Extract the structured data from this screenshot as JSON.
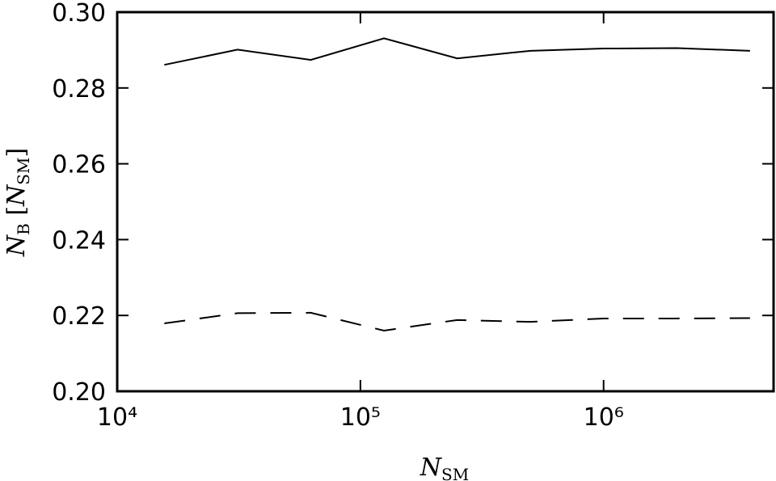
{
  "chart_data": {
    "type": "line",
    "xlabel": [
      "N",
      "SM"
    ],
    "ylabel": [
      "N",
      "B",
      " [",
      "N",
      "SM",
      "]"
    ],
    "x": [
      15625,
      31250,
      62500,
      125000,
      250000,
      500000,
      1000000,
      2000000,
      4000000
    ],
    "series": [
      {
        "color": "#000000",
        "linestyle": "solid",
        "values": [
          0.2861,
          0.2901,
          0.2874,
          0.2931,
          0.2878,
          0.2898,
          0.2904,
          0.2905,
          0.2898
        ]
      },
      {
        "color": "#000000",
        "linestyle": "dashed",
        "values": [
          0.2179,
          0.2206,
          0.2207,
          0.216,
          0.2188,
          0.2183,
          0.2192,
          0.2192,
          0.2193
        ]
      }
    ],
    "xscale": "log",
    "xlim": [
      10000,
      5000000
    ],
    "xticks": [
      {
        "value": 10000,
        "label": "10⁴"
      },
      {
        "value": 100000,
        "label": "10⁵"
      },
      {
        "value": 1000000,
        "label": "10⁶"
      }
    ],
    "ylim": [
      0.2,
      0.3
    ],
    "yticks": [
      {
        "value": 0.2,
        "label": "0.20"
      },
      {
        "value": 0.22,
        "label": "0.22"
      },
      {
        "value": 0.24,
        "label": "0.24"
      },
      {
        "value": 0.26,
        "label": "0.26"
      },
      {
        "value": 0.28,
        "label": "0.28"
      },
      {
        "value": 0.3,
        "label": "0.30"
      }
    ],
    "grid": false
  }
}
